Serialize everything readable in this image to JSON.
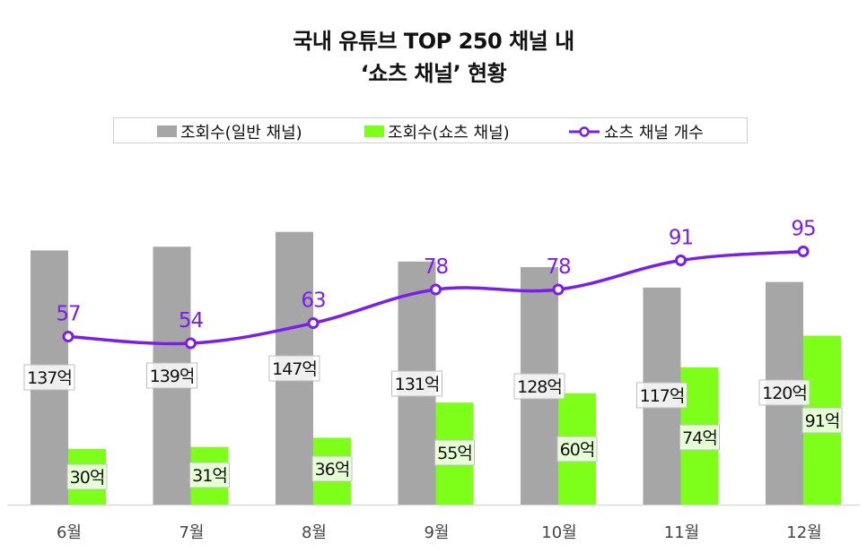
{
  "title_line1": "국내 유튜브 TOP 250 채널 내",
  "title_line2": "‘쇼츠 채널’ 현황",
  "legend": {
    "general": "조회수(일반 채널)",
    "shorts": "조회수(쇼츠 채널)",
    "count": "쇼츠 채널 개수"
  },
  "colors": {
    "general": "#a6a6a6",
    "shorts": "#7dff1a",
    "line": "#7b1fe8"
  },
  "chart_data": {
    "type": "bar",
    "categories": [
      "6월",
      "7월",
      "8월",
      "9월",
      "10월",
      "11월",
      "12월"
    ],
    "series": [
      {
        "name": "조회수(일반 채널)",
        "values": [
          137,
          139,
          147,
          131,
          128,
          117,
          120
        ],
        "labels": [
          "137억",
          "139억",
          "147억",
          "131억",
          "128억",
          "117억",
          "120억"
        ]
      },
      {
        "name": "조회수(쇼츠 채널)",
        "values": [
          30,
          31,
          36,
          55,
          60,
          74,
          91
        ],
        "labels": [
          "30억",
          "31억",
          "36억",
          "55억",
          "60억",
          "74억",
          "91억"
        ]
      },
      {
        "name": "쇼츠 채널 개수",
        "type": "line",
        "values": [
          57,
          54,
          63,
          78,
          78,
          91,
          95
        ],
        "labels": [
          "57",
          "54",
          "63",
          "78",
          "78",
          "91",
          "95"
        ]
      }
    ],
    "title": "국내 유튜브 TOP 250 채널 내 ‘쇼츠 채널’ 현황",
    "ylim": [
      0,
      150
    ],
    "ylim_line": [
      0,
      107
    ]
  }
}
